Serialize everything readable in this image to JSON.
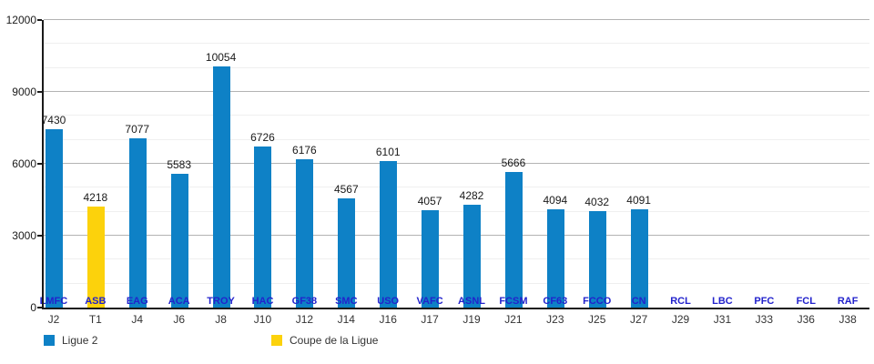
{
  "chart_data": {
    "type": "bar",
    "title": "",
    "categories": [
      "J2",
      "T1",
      "J4",
      "J6",
      "J8",
      "J10",
      "J12",
      "J14",
      "J16",
      "J17",
      "J19",
      "J21",
      "J23",
      "J25",
      "J27",
      "J29",
      "J31",
      "J33",
      "J36",
      "J38"
    ],
    "team_labels": [
      "LMFC",
      "ASB",
      "EAG",
      "ACA",
      "TROY",
      "HAC",
      "GF38",
      "SMC",
      "USO",
      "VAFC",
      "ASNL",
      "FCSM",
      "CF63",
      "FCCO",
      "CN",
      "RCL",
      "LBC",
      "PFC",
      "FCL",
      "RAF"
    ],
    "series": [
      {
        "name": "Ligue 2",
        "color": "#0E81C6",
        "values": [
          7430,
          null,
          7077,
          5583,
          10054,
          6726,
          6176,
          4567,
          6101,
          4057,
          4282,
          5666,
          4094,
          4032,
          4091,
          null,
          null,
          null,
          null,
          null
        ]
      },
      {
        "name": "Coupe de la Ligue",
        "color": "#FCD20C",
        "values": [
          null,
          4218,
          null,
          null,
          null,
          null,
          null,
          null,
          null,
          null,
          null,
          null,
          null,
          null,
          null,
          null,
          null,
          null,
          null,
          null
        ]
      }
    ],
    "y_axis": {
      "min": 0,
      "max": 12000,
      "major_step": 3000,
      "minor_step": 1000,
      "tick_labels": [
        "0",
        "3000",
        "6000",
        "9000",
        "12000"
      ]
    },
    "grid": "horizontal-only",
    "legend_position": "bottom-left",
    "colors": {
      "team_label": "#2222CC",
      "axis": "#1A1A1A",
      "major_grid": "#B3B3B3",
      "minor_grid": "#EFEFEF"
    }
  }
}
